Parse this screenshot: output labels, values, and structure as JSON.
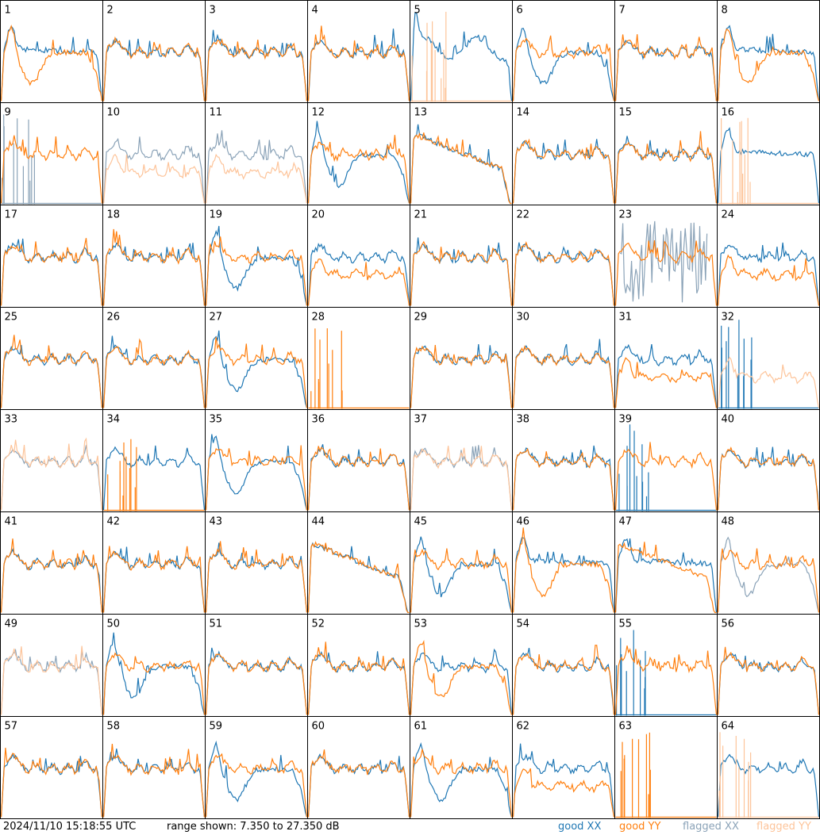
{
  "footer": {
    "timestamp": "2024/11/10 15:18:55 UTC",
    "range_text": "range shown: 7.350 to 27.350 dB",
    "legend": {
      "good_xx": "good XX",
      "good_yy": "good YY",
      "flagged_xx": "flagged XX",
      "flagged_yy": "flagged YY"
    }
  },
  "colors": {
    "good_xx": "#1f77b4",
    "good_yy": "#ff7f0e",
    "flagged_xx": "#8ba3b8",
    "flagged_yy": "#fdc49a"
  },
  "chart_data": {
    "type": "line",
    "layout": "8x8 small multiples",
    "ylim_db": [
      7.35,
      27.35
    ],
    "xlabel": "",
    "ylabel": "",
    "tiles": [
      {
        "id": "1",
        "xx": "arch",
        "yy": "dip",
        "xx_flag": false,
        "yy_flag": false
      },
      {
        "id": "2",
        "xx": "flat",
        "yy": "flat",
        "xx_flag": false,
        "yy_flag": false
      },
      {
        "id": "3",
        "xx": "flat",
        "yy": "flat",
        "xx_flag": false,
        "yy_flag": false
      },
      {
        "id": "4",
        "xx": "flat",
        "yy": "flat",
        "xx_flag": false,
        "yy_flag": false
      },
      {
        "id": "5",
        "xx": "wave",
        "yy": "spikes",
        "xx_flag": false,
        "yy_flag": true
      },
      {
        "id": "6",
        "xx": "dip",
        "yy": "flat",
        "xx_flag": false,
        "yy_flag": false
      },
      {
        "id": "7",
        "xx": "flat",
        "yy": "flat",
        "xx_flag": false,
        "yy_flag": false
      },
      {
        "id": "8",
        "xx": "arch",
        "yy": "dip",
        "xx_flag": false,
        "yy_flag": false
      },
      {
        "id": "9",
        "xx": "spikes",
        "yy": "flat",
        "xx_flag": true,
        "yy_flag": false
      },
      {
        "id": "10",
        "xx": "flat",
        "yy": "low",
        "xx_flag": true,
        "yy_flag": true
      },
      {
        "id": "11",
        "xx": "flat",
        "yy": "low",
        "xx_flag": true,
        "yy_flag": true
      },
      {
        "id": "12",
        "xx": "dip",
        "yy": "flat",
        "xx_flag": false,
        "yy_flag": false
      },
      {
        "id": "13",
        "xx": "decay",
        "yy": "decay",
        "xx_flag": false,
        "yy_flag": false
      },
      {
        "id": "14",
        "xx": "flat",
        "yy": "flat",
        "xx_flag": false,
        "yy_flag": false
      },
      {
        "id": "15",
        "xx": "flat",
        "yy": "flat",
        "xx_flag": false,
        "yy_flag": false
      },
      {
        "id": "16",
        "xx": "arch",
        "yy": "spikes",
        "xx_flag": false,
        "yy_flag": true
      },
      {
        "id": "17",
        "xx": "flat",
        "yy": "flat",
        "xx_flag": false,
        "yy_flag": false
      },
      {
        "id": "18",
        "xx": "flat",
        "yy": "flat",
        "xx_flag": false,
        "yy_flag": false
      },
      {
        "id": "19",
        "xx": "dip",
        "yy": "flat",
        "xx_flag": false,
        "yy_flag": false
      },
      {
        "id": "20",
        "xx": "flat",
        "yy": "low",
        "xx_flag": false,
        "yy_flag": false
      },
      {
        "id": "21",
        "xx": "flat",
        "yy": "flat",
        "xx_flag": false,
        "yy_flag": false
      },
      {
        "id": "22",
        "xx": "flat",
        "yy": "flat",
        "xx_flag": false,
        "yy_flag": false
      },
      {
        "id": "23",
        "xx": "noise",
        "yy": "flat",
        "xx_flag": true,
        "yy_flag": false
      },
      {
        "id": "24",
        "xx": "flat",
        "yy": "low",
        "xx_flag": false,
        "yy_flag": false
      },
      {
        "id": "25",
        "xx": "flat",
        "yy": "flat",
        "xx_flag": false,
        "yy_flag": false
      },
      {
        "id": "26",
        "xx": "flat",
        "yy": "flat",
        "xx_flag": false,
        "yy_flag": false
      },
      {
        "id": "27",
        "xx": "dip",
        "yy": "flat",
        "xx_flag": false,
        "yy_flag": false
      },
      {
        "id": "28",
        "xx": "none",
        "yy": "spikes",
        "xx_flag": false,
        "yy_flag": false
      },
      {
        "id": "29",
        "xx": "flat",
        "yy": "flat",
        "xx_flag": false,
        "yy_flag": false
      },
      {
        "id": "30",
        "xx": "flat",
        "yy": "flat",
        "xx_flag": false,
        "yy_flag": false
      },
      {
        "id": "31",
        "xx": "flat",
        "yy": "low",
        "xx_flag": false,
        "yy_flag": false
      },
      {
        "id": "32",
        "xx": "spikes",
        "yy": "low",
        "xx_flag": false,
        "yy_flag": true
      },
      {
        "id": "33",
        "xx": "flat",
        "yy": "flat",
        "xx_flag": true,
        "yy_flag": true
      },
      {
        "id": "34",
        "xx": "flat",
        "yy": "spikes",
        "xx_flag": false,
        "yy_flag": false
      },
      {
        "id": "35",
        "xx": "dip",
        "yy": "flat",
        "xx_flag": false,
        "yy_flag": false
      },
      {
        "id": "36",
        "xx": "flat",
        "yy": "flat",
        "xx_flag": false,
        "yy_flag": false
      },
      {
        "id": "37",
        "xx": "flat",
        "yy": "flat",
        "xx_flag": true,
        "yy_flag": true
      },
      {
        "id": "38",
        "xx": "flat",
        "yy": "flat",
        "xx_flag": false,
        "yy_flag": false
      },
      {
        "id": "39",
        "xx": "spikes",
        "yy": "flat",
        "xx_flag": false,
        "yy_flag": false
      },
      {
        "id": "40",
        "xx": "flat",
        "yy": "flat",
        "xx_flag": false,
        "yy_flag": false
      },
      {
        "id": "41",
        "xx": "flat",
        "yy": "flat",
        "xx_flag": false,
        "yy_flag": false
      },
      {
        "id": "42",
        "xx": "flat",
        "yy": "flat",
        "xx_flag": false,
        "yy_flag": false
      },
      {
        "id": "43",
        "xx": "flat",
        "yy": "flat",
        "xx_flag": false,
        "yy_flag": false
      },
      {
        "id": "44",
        "xx": "decay",
        "yy": "decay",
        "xx_flag": false,
        "yy_flag": false
      },
      {
        "id": "45",
        "xx": "dip",
        "yy": "flat",
        "xx_flag": false,
        "yy_flag": false
      },
      {
        "id": "46",
        "xx": "arch",
        "yy": "dip",
        "xx_flag": false,
        "yy_flag": false
      },
      {
        "id": "47",
        "xx": "arch",
        "yy": "decay",
        "xx_flag": false,
        "yy_flag": false
      },
      {
        "id": "48",
        "xx": "dip",
        "yy": "flat",
        "xx_flag": true,
        "yy_flag": false
      },
      {
        "id": "49",
        "xx": "flat",
        "yy": "flat",
        "xx_flag": true,
        "yy_flag": true
      },
      {
        "id": "50",
        "xx": "dip",
        "yy": "flat",
        "xx_flag": false,
        "yy_flag": false
      },
      {
        "id": "51",
        "xx": "flat",
        "yy": "flat",
        "xx_flag": false,
        "yy_flag": false
      },
      {
        "id": "52",
        "xx": "flat",
        "yy": "flat",
        "xx_flag": false,
        "yy_flag": false
      },
      {
        "id": "53",
        "xx": "flat",
        "yy": "dip",
        "xx_flag": false,
        "yy_flag": false
      },
      {
        "id": "54",
        "xx": "flat",
        "yy": "flat",
        "xx_flag": false,
        "yy_flag": false
      },
      {
        "id": "55",
        "xx": "spikes",
        "yy": "flat",
        "xx_flag": false,
        "yy_flag": false
      },
      {
        "id": "56",
        "xx": "flat",
        "yy": "flat",
        "xx_flag": false,
        "yy_flag": false
      },
      {
        "id": "57",
        "xx": "flat",
        "yy": "flat",
        "xx_flag": false,
        "yy_flag": false
      },
      {
        "id": "58",
        "xx": "flat",
        "yy": "flat",
        "xx_flag": false,
        "yy_flag": false
      },
      {
        "id": "59",
        "xx": "dip",
        "yy": "flat",
        "xx_flag": false,
        "yy_flag": false
      },
      {
        "id": "60",
        "xx": "flat",
        "yy": "flat",
        "xx_flag": false,
        "yy_flag": false
      },
      {
        "id": "61",
        "xx": "dip",
        "yy": "flat",
        "xx_flag": false,
        "yy_flag": false
      },
      {
        "id": "62",
        "xx": "flat",
        "yy": "low",
        "xx_flag": false,
        "yy_flag": false
      },
      {
        "id": "63",
        "xx": "none",
        "yy": "spikes",
        "xx_flag": false,
        "yy_flag": false
      },
      {
        "id": "64",
        "xx": "flat",
        "yy": "spikes",
        "xx_flag": false,
        "yy_flag": true
      }
    ]
  }
}
